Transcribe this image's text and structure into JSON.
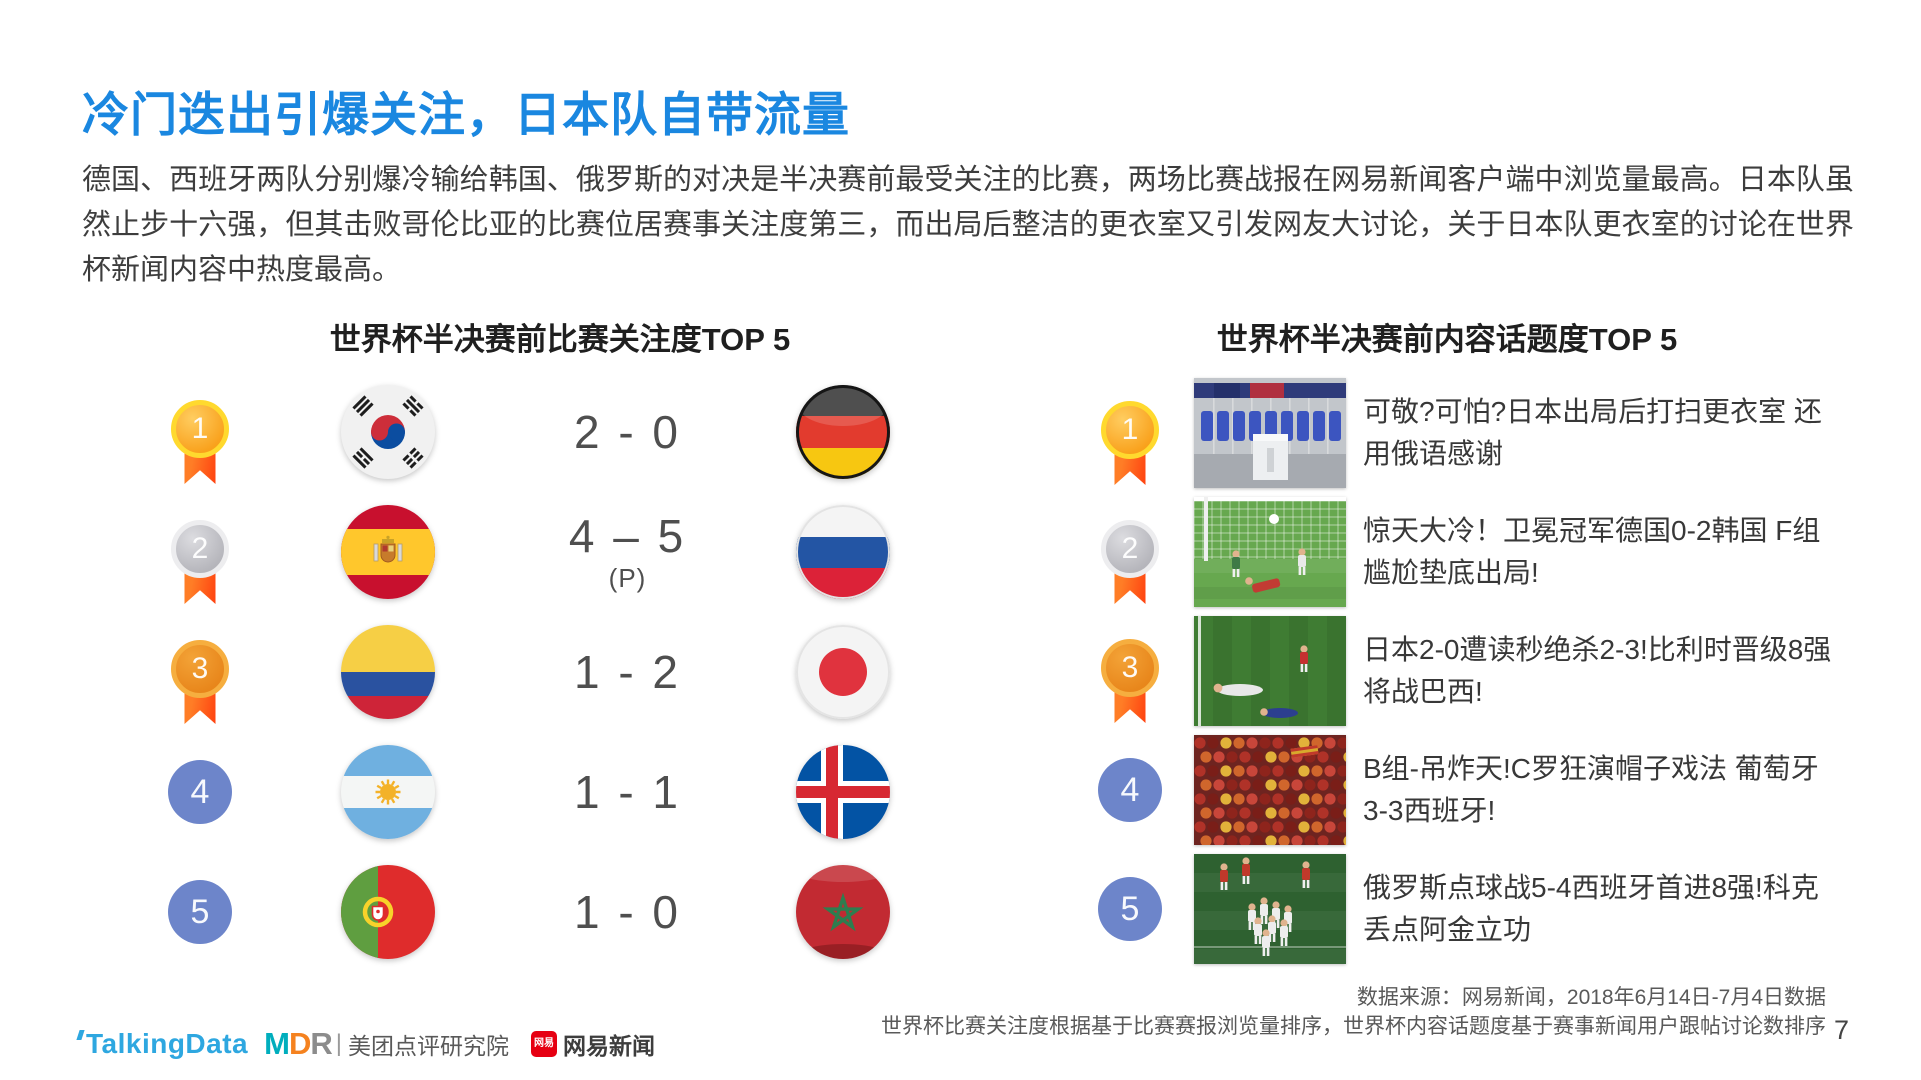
{
  "page": {
    "title": "冷门迭出引爆关注，日本队自带流量",
    "paragraph": "德国、西班牙两队分别爆冷输给韩国、俄罗斯的对决是半决赛前最受关注的比赛，两场比赛战报在网易新闻客户端中浏览量最高。日本队虽然止步十六强，但其击败哥伦比亚的比赛位居赛事关注度第三，而出局后整洁的更衣室又引发网友大讨论，关于日本队更衣室的讨论在世界杯新闻内容中热度最高。",
    "page_number": "7"
  },
  "colors": {
    "title_blue": "#1a87e0",
    "rank_circle_blue": "#6d85ca",
    "ribbon_orange": "#ff5a17",
    "gold": "#f9a11c",
    "silver": "#b5b5bb",
    "bronze": "#e8861b",
    "mdr_letter_colors": [
      "#00aebd",
      "#f5821f",
      "#8c8c8c"
    ]
  },
  "left_panel": {
    "title": "世界杯半决赛前比赛关注度TOP 5",
    "rows": [
      {
        "rank": "1",
        "home_flag": "south-korea",
        "away_flag": "germany",
        "score": "2 - 0",
        "note": ""
      },
      {
        "rank": "2",
        "home_flag": "spain",
        "away_flag": "russia",
        "score": "4 – 5",
        "note": "(P)"
      },
      {
        "rank": "3",
        "home_flag": "colombia",
        "away_flag": "japan",
        "score": "1 - 2",
        "note": ""
      },
      {
        "rank": "4",
        "home_flag": "argentina",
        "away_flag": "iceland",
        "score": "1 - 1",
        "note": ""
      },
      {
        "rank": "5",
        "home_flag": "portugal",
        "away_flag": "morocco",
        "score": "1 - 0",
        "note": ""
      }
    ]
  },
  "right_panel": {
    "title": "世界杯半决赛前内容话题度TOP 5",
    "rows": [
      {
        "rank": "1",
        "thumbnail": "japan-locker-room",
        "headline": "可敬?可怕?日本出局后打扫更衣室 还用俄语感谢"
      },
      {
        "rank": "2",
        "thumbnail": "germany-korea-goal",
        "headline": "惊天大冷！卫冕冠军德国0-2韩国 F组尴尬垫底出局!"
      },
      {
        "rank": "3",
        "thumbnail": "belgium-japan-match",
        "headline": "日本2-0遭读秒绝杀2-3!比利时晋级8强将战巴西!"
      },
      {
        "rank": "4",
        "thumbnail": "portugal-spain-fans",
        "headline": "B组-吊炸天!C罗狂演帽子戏法 葡萄牙3-3西班牙!"
      },
      {
        "rank": "5",
        "thumbnail": "russia-spain-penalties",
        "headline": "俄罗斯点球战5-4西班牙首进8强!科克丢点阿金立功"
      }
    ]
  },
  "footer": {
    "source_line1": "数据来源：网易新闻，2018年6月14日-7月4日数据",
    "source_line2": "世界杯比赛关注度根据基于比赛赛报浏览量排序，世界杯内容话题度基于赛事新闻用户跟帖讨论数排序",
    "logos": {
      "talkingdata": "TalkingData",
      "mdr": "MDR",
      "divider": "|",
      "meituan": "美团点评研究院",
      "netease_badge": "网易",
      "netease": "网易新闻"
    }
  }
}
